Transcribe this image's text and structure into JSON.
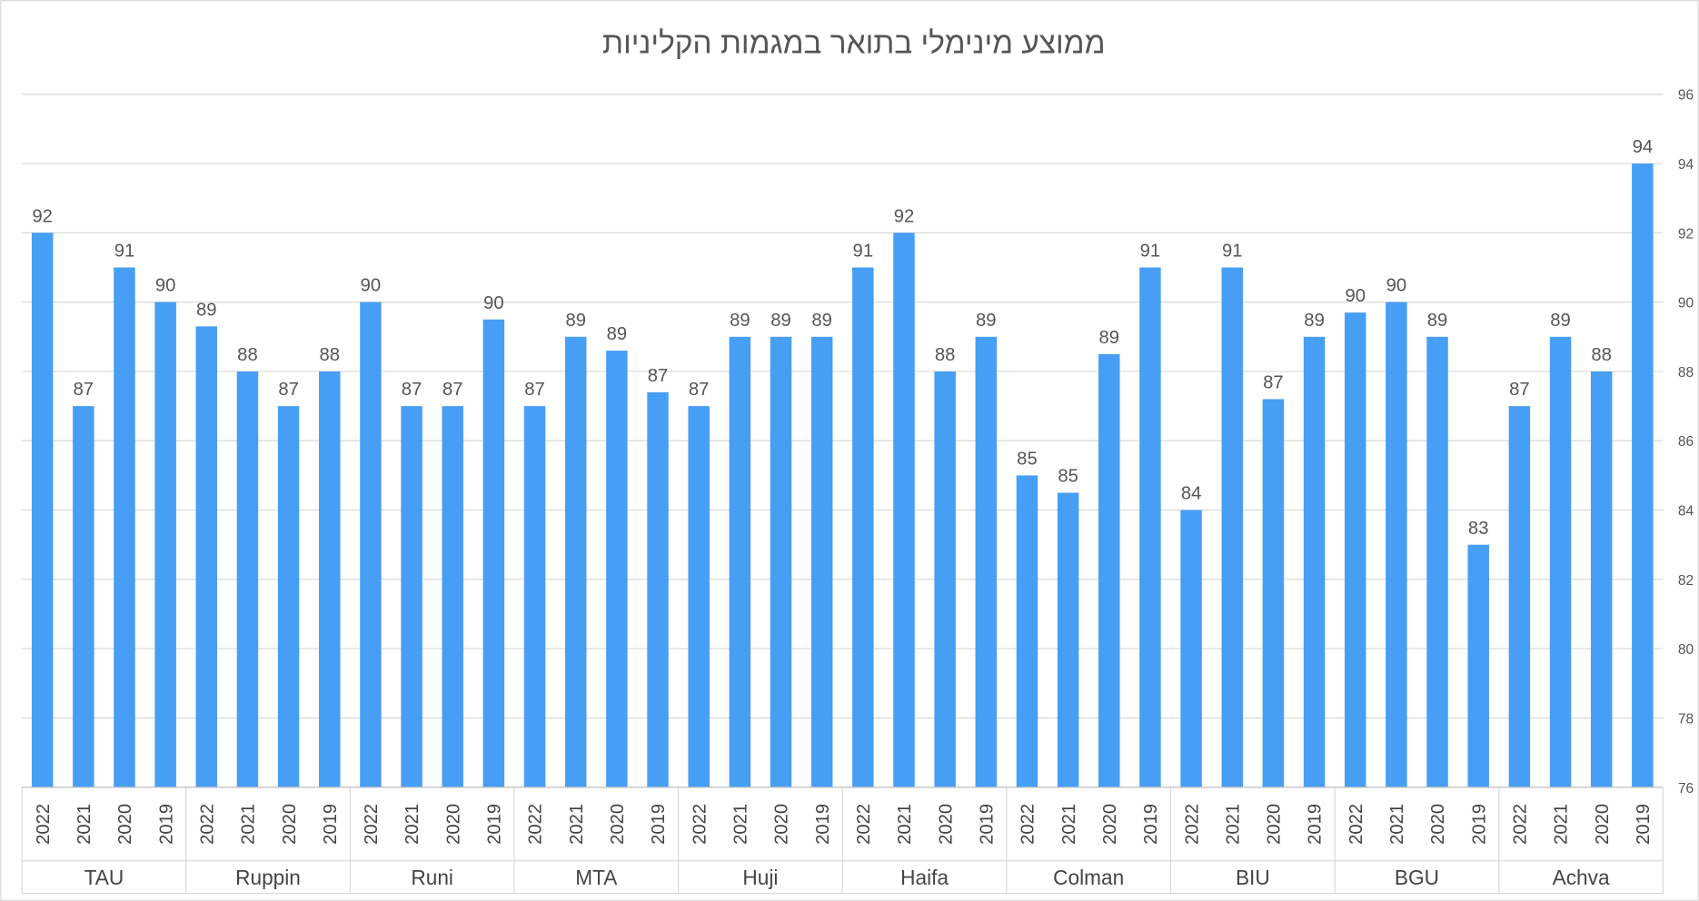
{
  "chart_data": {
    "type": "bar",
    "title": "ממוצע מינימלי בתואר במגמות הקליניות",
    "xlabel": "",
    "ylabel": "",
    "ylim": [
      76,
      96
    ],
    "yticks": [
      76,
      78,
      80,
      82,
      84,
      86,
      88,
      90,
      92,
      94,
      96
    ],
    "y_axis_side": "right",
    "grid": true,
    "bar_color": "#479EF5",
    "groups": [
      {
        "name": "TAU",
        "years": [
          "2022",
          "2021",
          "2020",
          "2019"
        ],
        "values": [
          92,
          87,
          91,
          90
        ],
        "labels": [
          "92",
          "87",
          "91",
          "90"
        ]
      },
      {
        "name": "Ruppin",
        "years": [
          "2022",
          "2021",
          "2020",
          "2019"
        ],
        "values": [
          89.3,
          88,
          87,
          88
        ],
        "labels": [
          "89",
          "88",
          "87",
          "88"
        ]
      },
      {
        "name": "Runi",
        "years": [
          "2022",
          "2021",
          "2020",
          "2019"
        ],
        "values": [
          90,
          87,
          87,
          89.5
        ],
        "labels": [
          "90",
          "87",
          "87",
          "90"
        ]
      },
      {
        "name": "MTA",
        "years": [
          "2022",
          "2021",
          "2020",
          "2019"
        ],
        "values": [
          87,
          89,
          88.6,
          87.4
        ],
        "labels": [
          "87",
          "89",
          "89",
          "87"
        ]
      },
      {
        "name": "Huji",
        "years": [
          "2022",
          "2021",
          "2020",
          "2019"
        ],
        "values": [
          87,
          89,
          89,
          89
        ],
        "labels": [
          "87",
          "89",
          "89",
          "89"
        ]
      },
      {
        "name": "Haifa",
        "years": [
          "2022",
          "2021",
          "2020",
          "2019"
        ],
        "values": [
          91,
          92,
          88,
          89
        ],
        "labels": [
          "91",
          "92",
          "88",
          "89"
        ]
      },
      {
        "name": "Colman",
        "years": [
          "2022",
          "2021",
          "2020",
          "2019"
        ],
        "values": [
          85,
          84.5,
          88.5,
          91
        ],
        "labels": [
          "85",
          "85",
          "89",
          "91"
        ]
      },
      {
        "name": "BIU",
        "years": [
          "2022",
          "2021",
          "2020",
          "2019"
        ],
        "values": [
          84,
          91,
          87.2,
          89
        ],
        "labels": [
          "84",
          "91",
          "87",
          "89"
        ]
      },
      {
        "name": "BGU",
        "years": [
          "2022",
          "2021",
          "2020",
          "2019"
        ],
        "values": [
          89.7,
          90,
          89,
          83
        ],
        "labels": [
          "90",
          "90",
          "89",
          "83"
        ]
      },
      {
        "name": "Achva",
        "years": [
          "2022",
          "2021",
          "2020",
          "2019"
        ],
        "values": [
          87,
          89,
          88,
          94
        ],
        "labels": [
          "87",
          "89",
          "88",
          "94"
        ]
      }
    ]
  }
}
